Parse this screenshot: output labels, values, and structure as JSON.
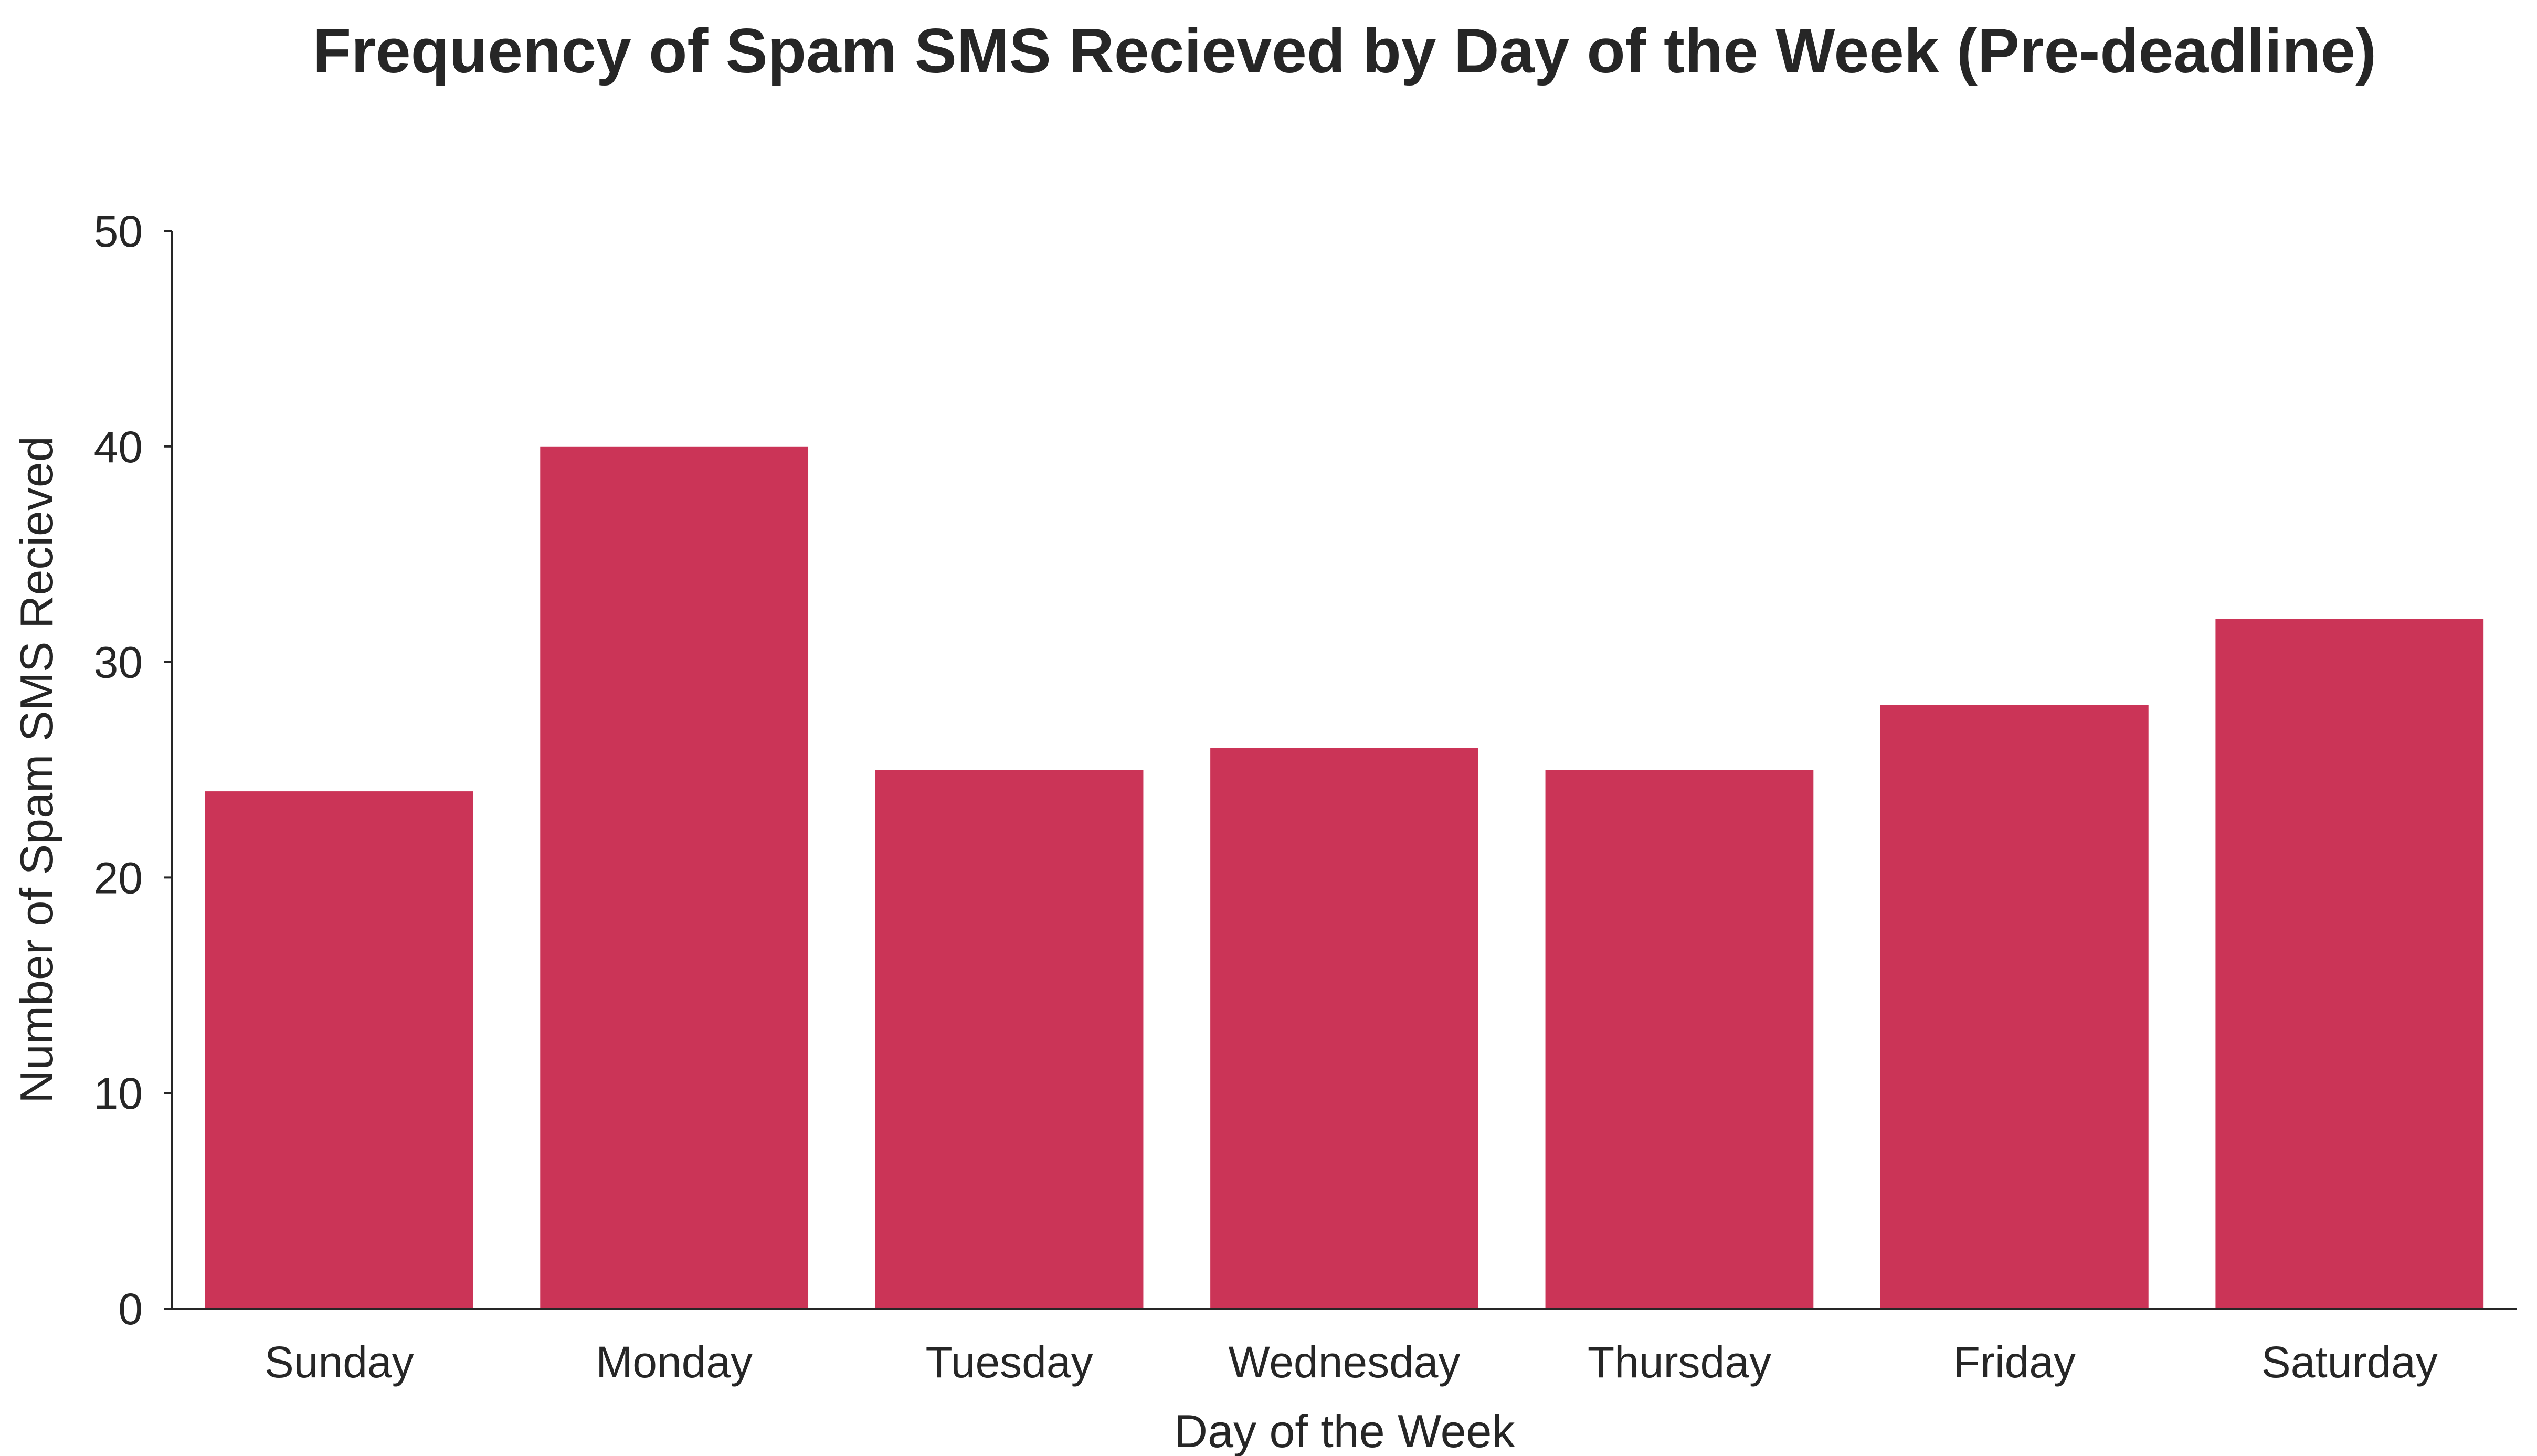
{
  "chart_data": {
    "type": "bar",
    "title": "Frequency of Spam SMS Recieved by Day of the Week (Pre-deadline)",
    "xlabel": "Day of the Week",
    "ylabel": "Number of Spam SMS Recieved",
    "categories": [
      "Sunday",
      "Monday",
      "Tuesday",
      "Wednesday",
      "Thursday",
      "Friday",
      "Saturday"
    ],
    "values": [
      24,
      40,
      25,
      26,
      25,
      28,
      32
    ],
    "ylim": [
      0,
      50
    ],
    "yticks": [
      0,
      10,
      20,
      30,
      40,
      50
    ],
    "bar_color": "#cb3457",
    "grid": false,
    "legend": "none"
  }
}
